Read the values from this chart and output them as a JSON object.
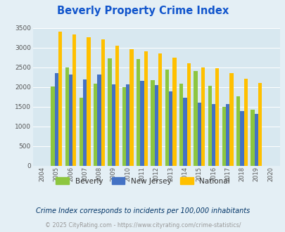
{
  "title": "Beverly Property Crime Index",
  "years": [
    2004,
    2005,
    2006,
    2007,
    2008,
    2009,
    2010,
    2011,
    2012,
    2013,
    2014,
    2015,
    2016,
    2017,
    2018,
    2019,
    2020
  ],
  "beverly": [
    0,
    2020,
    2500,
    1730,
    2080,
    2720,
    2000,
    2700,
    2170,
    2440,
    2080,
    2410,
    2030,
    1500,
    1760,
    1430,
    0
  ],
  "new_jersey": [
    0,
    2360,
    2310,
    2200,
    2310,
    2065,
    2065,
    2150,
    2055,
    1890,
    1720,
    1610,
    1560,
    1560,
    1395,
    1320,
    0
  ],
  "national": [
    0,
    3410,
    3340,
    3260,
    3210,
    3050,
    2960,
    2900,
    2860,
    2740,
    2600,
    2500,
    2470,
    2360,
    2210,
    2110,
    0
  ],
  "beverly_color": "#8DC63F",
  "nj_color": "#4472C4",
  "national_color": "#FFC000",
  "bg_color": "#E4EFF5",
  "plot_bg_color": "#D8E8F0",
  "ylim": [
    0,
    3500
  ],
  "yticks": [
    0,
    500,
    1000,
    1500,
    2000,
    2500,
    3000,
    3500
  ],
  "subtitle": "Crime Index corresponds to incidents per 100,000 inhabitants",
  "footer": "© 2025 CityRating.com - https://www.cityrating.com/crime-statistics/",
  "title_color": "#1155CC",
  "subtitle_color": "#003366",
  "footer_color": "#999999",
  "legend_text_color": "#333333"
}
